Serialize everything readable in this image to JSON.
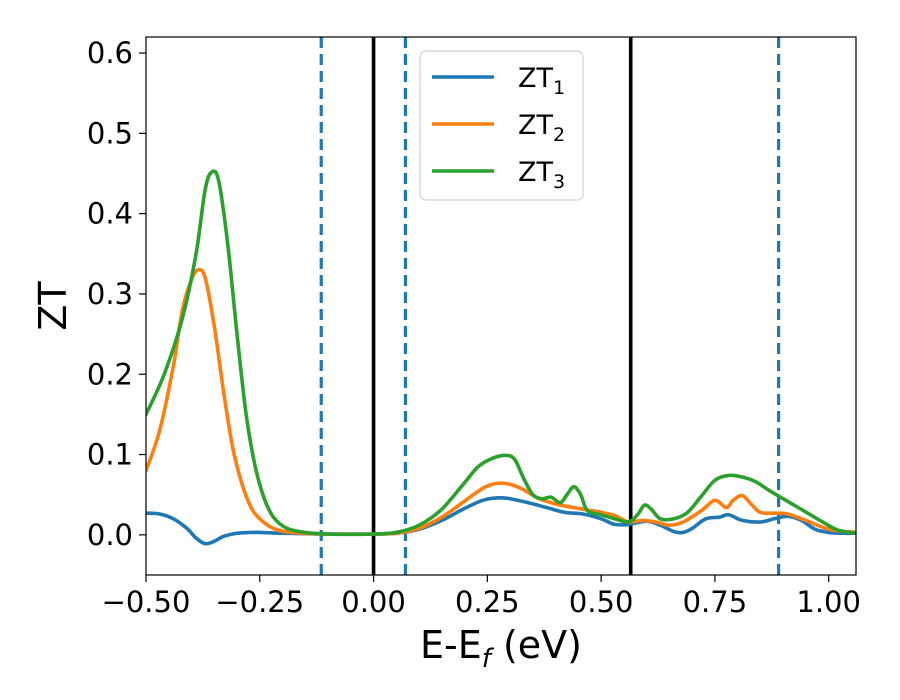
{
  "chart_data": {
    "type": "line",
    "title": "",
    "xlabel": "E-E",
    "xlabel_sub": "f",
    "xlabel_unit": " (eV)",
    "ylabel": "ZT",
    "xlim": [
      -0.5,
      1.06
    ],
    "ylim": [
      -0.05,
      0.62
    ],
    "xticks": [
      -0.5,
      -0.25,
      0.0,
      0.25,
      0.5,
      0.75,
      1.0
    ],
    "xtick_labels": [
      "−0.50",
      "−0.25",
      "0.00",
      "0.25",
      "0.50",
      "0.75",
      "1.00"
    ],
    "yticks": [
      0.0,
      0.1,
      0.2,
      0.3,
      0.4,
      0.5,
      0.6
    ],
    "ytick_labels": [
      "0.0",
      "0.1",
      "0.2",
      "0.3",
      "0.4",
      "0.5",
      "0.6"
    ],
    "grid": false,
    "legend_position": "top-center",
    "vlines": [
      {
        "x": -0.115,
        "style": "dashed",
        "color": "#1f77b4"
      },
      {
        "x": 0.0,
        "style": "solid",
        "color": "#000000"
      },
      {
        "x": 0.07,
        "style": "dashed",
        "color": "#1f77b4"
      },
      {
        "x": 0.565,
        "style": "solid",
        "color": "#000000"
      },
      {
        "x": 0.89,
        "style": "dashed",
        "color": "#1f77b4"
      }
    ],
    "series": [
      {
        "name": "ZT",
        "name_sub": "1",
        "color": "#1f77b4",
        "x": [
          -0.5,
          -0.47,
          -0.44,
          -0.41,
          -0.39,
          -0.37,
          -0.35,
          -0.33,
          -0.3,
          -0.27,
          -0.25,
          -0.2,
          -0.1,
          0.0,
          0.05,
          0.1,
          0.15,
          0.2,
          0.24,
          0.27,
          0.3,
          0.34,
          0.38,
          0.42,
          0.46,
          0.5,
          0.53,
          0.56,
          0.6,
          0.63,
          0.66,
          0.68,
          0.7,
          0.73,
          0.76,
          0.78,
          0.81,
          0.85,
          0.88,
          0.91,
          0.94,
          0.97,
          1.0,
          1.03,
          1.06
        ],
        "y": [
          0.027,
          0.026,
          0.02,
          0.008,
          -0.004,
          -0.011,
          -0.008,
          -0.002,
          0.002,
          0.003,
          0.003,
          0.002,
          0.001,
          0.001,
          0.002,
          0.007,
          0.018,
          0.033,
          0.043,
          0.046,
          0.045,
          0.04,
          0.034,
          0.028,
          0.026,
          0.02,
          0.013,
          0.013,
          0.017,
          0.012,
          0.004,
          0.003,
          0.008,
          0.02,
          0.022,
          0.025,
          0.018,
          0.016,
          0.02,
          0.023,
          0.018,
          0.007,
          0.003,
          0.002,
          0.002
        ]
      },
      {
        "name": "ZT",
        "name_sub": "2",
        "color": "#ff7f0e",
        "x": [
          -0.5,
          -0.47,
          -0.44,
          -0.42,
          -0.4,
          -0.385,
          -0.37,
          -0.35,
          -0.33,
          -0.31,
          -0.29,
          -0.27,
          -0.25,
          -0.22,
          -0.18,
          -0.1,
          0.0,
          0.05,
          0.1,
          0.15,
          0.2,
          0.24,
          0.27,
          0.3,
          0.33,
          0.36,
          0.39,
          0.42,
          0.45,
          0.48,
          0.5,
          0.53,
          0.56,
          0.59,
          0.62,
          0.65,
          0.68,
          0.72,
          0.75,
          0.775,
          0.79,
          0.81,
          0.83,
          0.85,
          0.88,
          0.91,
          0.95,
          1.0,
          1.06
        ],
        "y": [
          0.08,
          0.13,
          0.21,
          0.28,
          0.318,
          0.33,
          0.32,
          0.26,
          0.18,
          0.11,
          0.065,
          0.035,
          0.02,
          0.008,
          0.003,
          0.001,
          0.001,
          0.002,
          0.008,
          0.022,
          0.042,
          0.058,
          0.064,
          0.063,
          0.056,
          0.046,
          0.04,
          0.036,
          0.033,
          0.03,
          0.028,
          0.024,
          0.016,
          0.018,
          0.016,
          0.012,
          0.016,
          0.03,
          0.043,
          0.034,
          0.043,
          0.049,
          0.038,
          0.028,
          0.027,
          0.026,
          0.018,
          0.007,
          0.003
        ]
      },
      {
        "name": "ZT",
        "name_sub": "3",
        "color": "#2ca02c",
        "x": [
          -0.5,
          -0.46,
          -0.42,
          -0.39,
          -0.37,
          -0.355,
          -0.34,
          -0.32,
          -0.3,
          -0.28,
          -0.26,
          -0.24,
          -0.22,
          -0.19,
          -0.15,
          -0.1,
          0.0,
          0.05,
          0.1,
          0.15,
          0.2,
          0.23,
          0.26,
          0.29,
          0.31,
          0.33,
          0.35,
          0.37,
          0.39,
          0.41,
          0.425,
          0.44,
          0.455,
          0.47,
          0.5,
          0.53,
          0.56,
          0.58,
          0.595,
          0.61,
          0.63,
          0.66,
          0.69,
          0.72,
          0.75,
          0.78,
          0.81,
          0.84,
          0.87,
          0.9,
          0.93,
          0.96,
          0.99,
          1.02,
          1.06
        ],
        "y": [
          0.15,
          0.2,
          0.27,
          0.35,
          0.43,
          0.452,
          0.44,
          0.36,
          0.25,
          0.15,
          0.085,
          0.045,
          0.022,
          0.008,
          0.003,
          0.001,
          0.001,
          0.003,
          0.012,
          0.032,
          0.065,
          0.085,
          0.095,
          0.099,
          0.094,
          0.07,
          0.05,
          0.045,
          0.047,
          0.04,
          0.05,
          0.06,
          0.05,
          0.03,
          0.025,
          0.02,
          0.016,
          0.025,
          0.037,
          0.032,
          0.02,
          0.02,
          0.028,
          0.048,
          0.068,
          0.074,
          0.072,
          0.066,
          0.055,
          0.045,
          0.035,
          0.025,
          0.015,
          0.006,
          0.002
        ]
      }
    ]
  }
}
